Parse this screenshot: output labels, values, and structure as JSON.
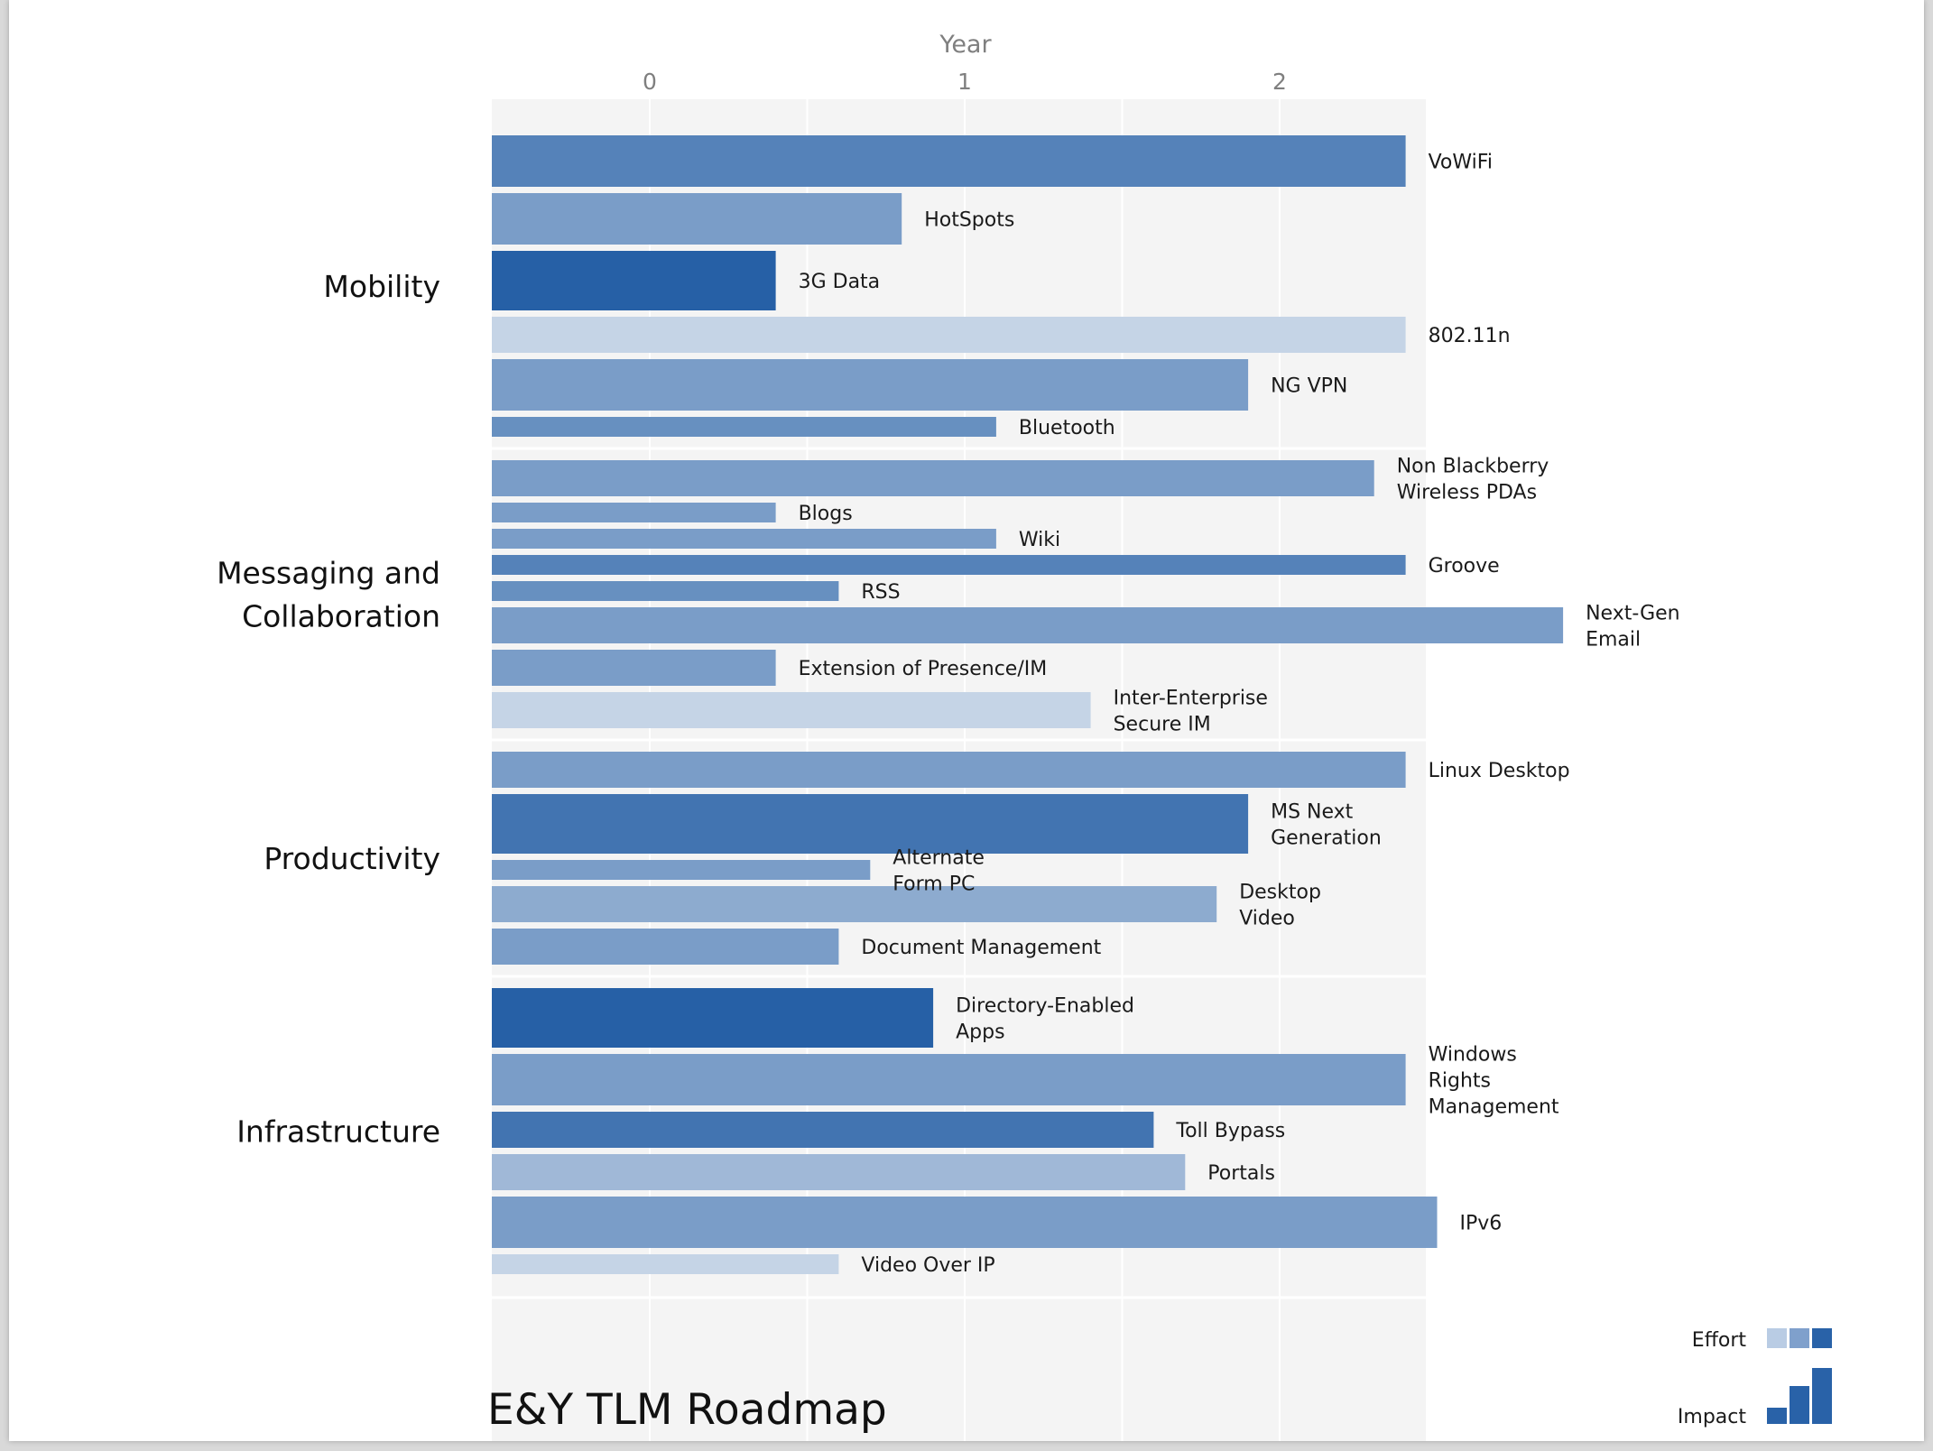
{
  "chart_data": {
    "type": "bar",
    "orientation": "horizontal",
    "title": "E&Y TLM Roadmap",
    "xlabel": "Year",
    "xlim": [
      -0.5,
      2.5
    ],
    "xticks": [
      0,
      1,
      2
    ],
    "grid": true,
    "legend": {
      "placement": "bottom-right",
      "effort_label": "Effort",
      "impact_label": "Impact",
      "effort_colors": [
        "#b9cce4",
        "#7fa0cc",
        "#2962a8"
      ],
      "impact_color": "#2962a8"
    },
    "groups": [
      {
        "name": "Mobility",
        "items": [
          {
            "label": [
              "VoWiFi"
            ],
            "value": 2.0,
            "effort": 0.75,
            "impact": 3
          },
          {
            "label": [
              "HotSpots"
            ],
            "value": 0.4,
            "effort": 0.55,
            "impact": 3
          },
          {
            "label": [
              "3G Data"
            ],
            "value": 0.0,
            "effort": 1.0,
            "impact": 4
          },
          {
            "label": [
              "802.11n"
            ],
            "value": 2.0,
            "effort": 0.15,
            "impact": 2
          },
          {
            "label": [
              "NG VPN"
            ],
            "value": 1.5,
            "effort": 0.55,
            "impact": 3
          },
          {
            "label": [
              "Bluetooth"
            ],
            "value": 0.7,
            "effort": 0.65,
            "impact": 1
          }
        ]
      },
      {
        "name": "Messaging and Collaboration",
        "items": [
          {
            "label": [
              "Non Blackberry",
              "Wireless PDAs"
            ],
            "value": 1.9,
            "effort": 0.55,
            "impact": 2
          },
          {
            "label": [
              "Blogs"
            ],
            "value": 0.0,
            "effort": 0.55,
            "impact": 1
          },
          {
            "label": [
              "Wiki"
            ],
            "value": 0.7,
            "effort": 0.55,
            "impact": 1
          },
          {
            "label": [
              "Groove"
            ],
            "value": 2.0,
            "effort": 0.75,
            "impact": 1
          },
          {
            "label": [
              "RSS"
            ],
            "value": 0.2,
            "effort": 0.65,
            "impact": 1
          },
          {
            "label": [
              "Next-Gen",
              "Email"
            ],
            "value": 2.5,
            "effort": 0.55,
            "impact": 2
          },
          {
            "label": [
              "Extension of Presence/IM"
            ],
            "value": 0.0,
            "effort": 0.55,
            "impact": 2
          },
          {
            "label": [
              "Inter-Enterprise",
              "Secure IM"
            ],
            "value": 1.0,
            "effort": 0.15,
            "impact": 2
          }
        ]
      },
      {
        "name": "Productivity",
        "items": [
          {
            "label": [
              "Linux Desktop"
            ],
            "value": 2.0,
            "effort": 0.55,
            "impact": 2
          },
          {
            "label": [
              "MS Next",
              "Generation"
            ],
            "value": 1.5,
            "effort": 0.85,
            "impact": 4
          },
          {
            "label": [
              "Alternate",
              "Form PC"
            ],
            "value": 0.3,
            "effort": 0.55,
            "impact": 1
          },
          {
            "label": [
              "Desktop",
              "Video"
            ],
            "value": 1.4,
            "effort": 0.45,
            "impact": 2
          },
          {
            "label": [
              "Document Management"
            ],
            "value": 0.2,
            "effort": 0.55,
            "impact": 2
          }
        ]
      },
      {
        "name": "Infrastructure",
        "items": [
          {
            "label": [
              "Directory-Enabled",
              "Apps"
            ],
            "value": 0.5,
            "effort": 1.0,
            "impact": 4
          },
          {
            "label": [
              "Windows",
              "Rights",
              "Management"
            ],
            "value": 2.0,
            "effort": 0.55,
            "impact": 3
          },
          {
            "label": [
              "Toll Bypass"
            ],
            "value": 1.2,
            "effort": 0.85,
            "impact": 2
          },
          {
            "label": [
              "Portals"
            ],
            "value": 1.3,
            "effort": 0.35,
            "impact": 2
          },
          {
            "label": [
              "IPv6"
            ],
            "value": 2.1,
            "effort": 0.55,
            "impact": 3
          },
          {
            "label": [
              "Video Over IP"
            ],
            "value": 0.2,
            "effort": 0.15,
            "impact": 1
          }
        ]
      }
    ]
  }
}
